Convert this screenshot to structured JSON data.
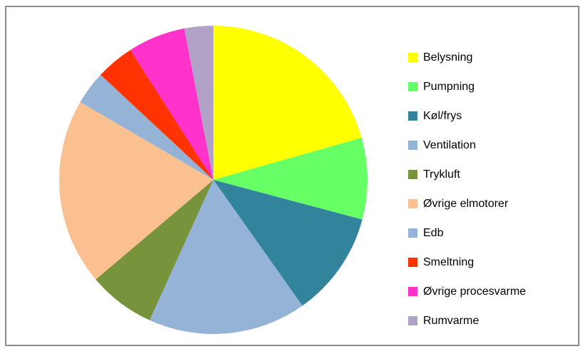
{
  "chart_data": {
    "type": "pie",
    "title": "",
    "legend_position": "right",
    "start_angle_deg": 0,
    "direction": "clockwise",
    "series": [
      {
        "categories": [
          "Belysning",
          "Pumpning",
          "Køl/frys",
          "Ventilation",
          "Trykluft",
          "Øvrige elmotorer",
          "Edb",
          "Smeltning",
          "Øvrige procesvarme",
          "Rumvarme"
        ],
        "values": [
          20.5,
          8.5,
          11.0,
          16.5,
          7.0,
          19.5,
          3.5,
          4.0,
          6.0,
          3.0
        ],
        "colors": [
          "#FFFF00",
          "#66FF66",
          "#31849B",
          "#95B3D7",
          "#77933C",
          "#FAC090",
          "#95B3D7",
          "#FF3300",
          "#FF33CC",
          "#B2A1C7"
        ]
      }
    ]
  }
}
